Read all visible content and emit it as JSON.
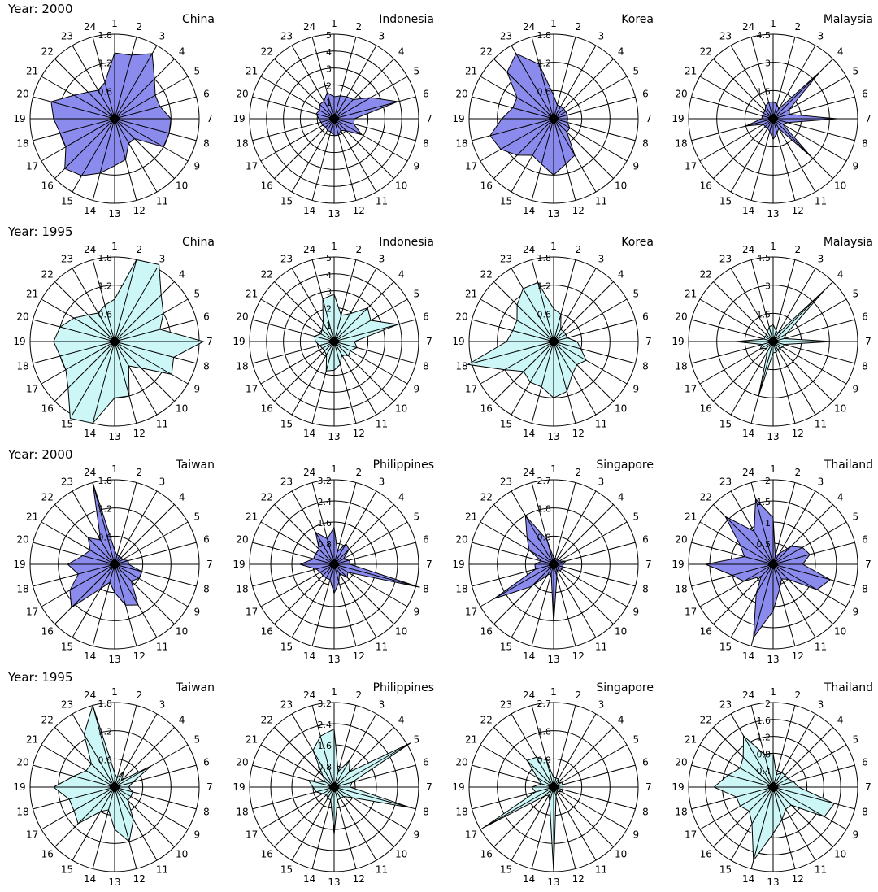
{
  "colors": {
    "row_2000": "#8b8bee",
    "row_1995": "#cdf6f6",
    "outline": "#000000",
    "center": "#000000"
  },
  "chart_data": [
    {
      "type": "radar",
      "year_label": "Year: 2000",
      "title": "China",
      "fill": "#8b8bee",
      "max": 1.8,
      "rings": [
        0.6,
        1.2,
        1.8
      ],
      "ring_labels": [
        "0.6",
        "1.2",
        "1.8"
      ],
      "categories": [
        "1",
        "2",
        "3",
        "4",
        "5",
        "6",
        "7",
        "8",
        "9",
        "10",
        "11",
        "12",
        "13",
        "14",
        "15",
        "16",
        "17",
        "18",
        "19",
        "20",
        "21",
        "22",
        "23",
        "24"
      ],
      "values": [
        1.4,
        1.4,
        1.6,
        1.2,
        1.0,
        1.0,
        1.2,
        1.2,
        1.2,
        0.6,
        0.6,
        0.9,
        1.0,
        1.2,
        1.4,
        1.5,
        1.2,
        1.2,
        1.3,
        1.4,
        1.0,
        0.8,
        0.7,
        0.8
      ]
    },
    {
      "type": "radar",
      "title": "Indonesia",
      "fill": "#8b8bee",
      "max": 5,
      "rings": [
        1,
        2,
        3,
        4,
        5
      ],
      "ring_labels": [
        "1",
        "2",
        "3",
        "4",
        "5"
      ],
      "categories": [
        "1",
        "2",
        "3",
        "4",
        "5",
        "6",
        "7",
        "8",
        "9",
        "10",
        "11",
        "12",
        "13",
        "14",
        "15",
        "16",
        "17",
        "18",
        "19",
        "20",
        "21",
        "22",
        "23",
        "24"
      ],
      "values": [
        1.3,
        1.4,
        1.5,
        1.6,
        2.5,
        3.9,
        1.2,
        1.2,
        1.9,
        1.0,
        0.8,
        1.0,
        1.0,
        0.8,
        0.8,
        0.7,
        0.8,
        0.8,
        0.9,
        1.1,
        1.0,
        1.2,
        1.2,
        1.6
      ]
    },
    {
      "type": "radar",
      "title": "Korea",
      "fill": "#8b8bee",
      "max": 1.8,
      "rings": [
        0.6,
        1.2,
        1.8
      ],
      "ring_labels": [
        "0.6",
        "1.2",
        "1.8"
      ],
      "categories": [
        "1",
        "2",
        "3",
        "4",
        "5",
        "6",
        "7",
        "8",
        "9",
        "10",
        "11",
        "12",
        "13",
        "14",
        "15",
        "16",
        "17",
        "18",
        "19",
        "20",
        "21",
        "22",
        "23",
        "24"
      ],
      "values": [
        0.5,
        0.3,
        0.3,
        0.3,
        0.3,
        0.3,
        0.3,
        0.3,
        0.4,
        0.4,
        0.9,
        1.0,
        1.2,
        1.0,
        0.9,
        1.1,
        1.3,
        1.4,
        1.1,
        0.9,
        0.9,
        1.4,
        1.6,
        1.2
      ]
    },
    {
      "type": "radar",
      "title": "Malaysia",
      "fill": "#8b8bee",
      "max": 4.5,
      "rings": [
        1.5,
        3,
        4.5
      ],
      "ring_labels": [
        "1.5",
        "3",
        "4.5"
      ],
      "categories": [
        "1",
        "2",
        "3",
        "4",
        "5",
        "6",
        "7",
        "8",
        "9",
        "10",
        "11",
        "12",
        "13",
        "14",
        "15",
        "16",
        "17",
        "18",
        "19",
        "20",
        "21",
        "22",
        "23",
        "24"
      ],
      "values": [
        0.9,
        0.8,
        0.6,
        3.5,
        1.0,
        0.9,
        3.4,
        0.8,
        0.6,
        2.9,
        0.6,
        0.8,
        1.1,
        0.7,
        0.6,
        0.6,
        0.6,
        1.5,
        0.6,
        0.6,
        0.6,
        0.6,
        0.8,
        0.9
      ]
    },
    {
      "type": "radar",
      "year_label": "Year: 1995",
      "title": "China",
      "fill": "#cdf6f6",
      "max": 1.8,
      "rings": [
        0.6,
        1.2,
        1.8
      ],
      "ring_labels": [
        "0.6",
        "1.2",
        "1.8"
      ],
      "categories": [
        "1",
        "2",
        "3",
        "4",
        "5",
        "6",
        "7",
        "8",
        "9",
        "10",
        "11",
        "12",
        "13",
        "14",
        "15",
        "16",
        "17",
        "18",
        "19",
        "20",
        "21",
        "22",
        "23",
        "24"
      ],
      "values": [
        0.9,
        1.8,
        1.9,
        1.4,
        1.2,
        1.0,
        1.9,
        1.3,
        1.4,
        0.8,
        0.6,
        1.2,
        1.2,
        1.8,
        1.9,
        1.4,
        1.2,
        1.2,
        1.3,
        1.2,
        1.0,
        0.8,
        0.7,
        0.8
      ]
    },
    {
      "type": "radar",
      "title": "Indonesia",
      "fill": "#cdf6f6",
      "max": 5,
      "rings": [
        1,
        2,
        3,
        4,
        5
      ],
      "ring_labels": [
        "1",
        "2",
        "3",
        "4",
        "5"
      ],
      "categories": [
        "1",
        "2",
        "3",
        "4",
        "5",
        "6",
        "7",
        "8",
        "9",
        "10",
        "11",
        "12",
        "13",
        "14",
        "15",
        "16",
        "17",
        "18",
        "19",
        "20",
        "21",
        "22",
        "23",
        "24"
      ],
      "values": [
        2.8,
        1.6,
        1.9,
        2.8,
        2.5,
        3.9,
        1.2,
        1.4,
        1.1,
        1.2,
        0.9,
        1.4,
        1.7,
        1.8,
        0.9,
        0.8,
        0.8,
        0.9,
        1.1,
        1.2,
        0.9,
        1.0,
        1.3,
        2.6
      ]
    },
    {
      "type": "radar",
      "title": "Korea",
      "fill": "#cdf6f6",
      "max": 1.8,
      "rings": [
        0.6,
        1.2,
        1.8
      ],
      "ring_labels": [
        "0.6",
        "1.2",
        "1.8"
      ],
      "categories": [
        "1",
        "2",
        "3",
        "4",
        "5",
        "6",
        "7",
        "8",
        "9",
        "10",
        "11",
        "12",
        "13",
        "14",
        "15",
        "16",
        "17",
        "18",
        "19",
        "20",
        "21",
        "22",
        "23",
        "24"
      ],
      "values": [
        0.7,
        0.6,
        0.3,
        0.3,
        0.3,
        0.3,
        0.5,
        0.6,
        0.8,
        0.7,
        0.8,
        1.1,
        1.2,
        1.0,
        1.0,
        0.9,
        1.2,
        1.9,
        1.0,
        0.9,
        0.9,
        1.1,
        1.3,
        1.3
      ]
    },
    {
      "type": "radar",
      "title": "Malaysia",
      "fill": "#cdf6f6",
      "max": 4.5,
      "rings": [
        1.5,
        3,
        4.5
      ],
      "ring_labels": [
        "1.5",
        "3",
        "4.5"
      ],
      "categories": [
        "1",
        "2",
        "3",
        "4",
        "5",
        "6",
        "7",
        "8",
        "9",
        "10",
        "11",
        "12",
        "13",
        "14",
        "15",
        "16",
        "17",
        "18",
        "19",
        "20",
        "21",
        "22",
        "23",
        "24"
      ],
      "values": [
        0.9,
        0.6,
        0.5,
        3.9,
        0.8,
        0.6,
        3.1,
        0.6,
        0.6,
        0.5,
        0.5,
        0.6,
        0.6,
        3.0,
        0.6,
        0.5,
        0.8,
        0.6,
        2.0,
        0.5,
        0.5,
        0.5,
        0.6,
        0.8
      ]
    },
    {
      "type": "radar",
      "year_label": "Year: 2000",
      "title": "Taiwan",
      "fill": "#8b8bee",
      "max": 1.8,
      "rings": [
        0.6,
        1.2,
        1.8
      ],
      "ring_labels": [
        "0.6",
        "1.2",
        "1.8"
      ],
      "categories": [
        "1",
        "2",
        "3",
        "4",
        "5",
        "6",
        "7",
        "8",
        "9",
        "10",
        "11",
        "12",
        "13",
        "14",
        "15",
        "16",
        "17",
        "18",
        "19",
        "20",
        "21",
        "22",
        "23",
        "24"
      ],
      "values": [
        0.3,
        0.2,
        0.2,
        0.2,
        0.2,
        0.3,
        0.3,
        0.6,
        0.6,
        0.5,
        1.0,
        0.9,
        0.6,
        0.4,
        0.6,
        1.3,
        1.1,
        0.8,
        1.0,
        0.7,
        0.6,
        0.8,
        0.6,
        1.8
      ]
    },
    {
      "type": "radar",
      "title": "Philippines",
      "fill": "#8b8bee",
      "max": 3.2,
      "rings": [
        0.8,
        1.6,
        2.4,
        3.2
      ],
      "ring_labels": [
        "0.8",
        "1.6",
        "2.4",
        "3.2"
      ],
      "categories": [
        "1",
        "2",
        "3",
        "4",
        "5",
        "6",
        "7",
        "8",
        "9",
        "10",
        "11",
        "12",
        "13",
        "14",
        "15",
        "16",
        "17",
        "18",
        "19",
        "20",
        "21",
        "22",
        "23",
        "24"
      ],
      "values": [
        1.4,
        0.5,
        0.9,
        0.8,
        0.4,
        0.6,
        0.6,
        3.4,
        0.6,
        0.7,
        0.4,
        0.7,
        1.1,
        0.6,
        0.6,
        0.6,
        0.6,
        0.7,
        1.3,
        0.8,
        0.8,
        0.8,
        1.4,
        1.0
      ]
    },
    {
      "type": "radar",
      "title": "Singapore",
      "fill": "#8b8bee",
      "max": 2.7,
      "rings": [
        0.9,
        1.8,
        2.7
      ],
      "ring_labels": [
        "0.9",
        "1.8",
        "2.7"
      ],
      "categories": [
        "1",
        "2",
        "3",
        "4",
        "5",
        "6",
        "7",
        "8",
        "9",
        "10",
        "11",
        "12",
        "13",
        "14",
        "15",
        "16",
        "17",
        "18",
        "19",
        "20",
        "21",
        "22",
        "23",
        "24"
      ],
      "values": [
        0.2,
        0.2,
        0.2,
        0.2,
        0.2,
        0.4,
        0.3,
        0.3,
        0.3,
        0.3,
        0.2,
        0.4,
        1.9,
        0.3,
        0.4,
        1.0,
        2.2,
        0.6,
        0.6,
        0.4,
        0.9,
        1.2,
        1.8,
        0.8
      ]
    },
    {
      "type": "radar",
      "title": "Thailand",
      "fill": "#8b8bee",
      "max": 2,
      "rings": [
        0.5,
        1,
        1.5,
        2
      ],
      "ring_labels": [
        "0.5",
        "1",
        "1.5",
        "2"
      ],
      "categories": [
        "1",
        "2",
        "3",
        "4",
        "5",
        "6",
        "7",
        "8",
        "9",
        "10",
        "11",
        "12",
        "13",
        "14",
        "15",
        "16",
        "17",
        "18",
        "19",
        "20",
        "21",
        "22",
        "23",
        "24"
      ],
      "values": [
        1.1,
        0.2,
        0.3,
        0.6,
        0.8,
        0.9,
        0.7,
        1.4,
        1.2,
        0.5,
        0.4,
        0.6,
        1.1,
        1.8,
        0.8,
        0.4,
        0.8,
        1.0,
        1.6,
        0.7,
        0.9,
        1.6,
        0.9,
        1.6
      ]
    },
    {
      "type": "radar",
      "year_label": "Year: 1995",
      "title": "Taiwan",
      "fill": "#cdf6f6",
      "max": 1.8,
      "rings": [
        0.6,
        1.2,
        1.8
      ],
      "ring_labels": [
        "0.6",
        "1.2",
        "1.8"
      ],
      "categories": [
        "1",
        "2",
        "3",
        "4",
        "5",
        "6",
        "7",
        "8",
        "9",
        "10",
        "11",
        "12",
        "13",
        "14",
        "15",
        "16",
        "17",
        "18",
        "19",
        "20",
        "21",
        "22",
        "23",
        "24"
      ],
      "values": [
        0.3,
        0.2,
        0.4,
        0.2,
        0.9,
        0.4,
        0.3,
        0.4,
        0.4,
        0.4,
        0.8,
        1.2,
        0.9,
        0.5,
        0.6,
        1.1,
        1.0,
        1.0,
        1.3,
        0.9,
        0.7,
        0.7,
        1.3,
        1.8
      ]
    },
    {
      "type": "radar",
      "title": "Philippines",
      "fill": "#cdf6f6",
      "max": 3.2,
      "rings": [
        0.8,
        1.6,
        2.4,
        3.2
      ],
      "ring_labels": [
        "0.8",
        "1.6",
        "2.4",
        "3.2"
      ],
      "categories": [
        "1",
        "2",
        "3",
        "4",
        "5",
        "6",
        "7",
        "8",
        "9",
        "10",
        "11",
        "12",
        "13",
        "14",
        "15",
        "16",
        "17",
        "18",
        "19",
        "20",
        "21",
        "22",
        "23",
        "24"
      ],
      "values": [
        2.2,
        0.6,
        1.2,
        0.8,
        3.6,
        0.7,
        0.6,
        3.0,
        0.8,
        0.5,
        0.5,
        0.5,
        1.8,
        0.5,
        0.5,
        0.4,
        0.5,
        0.7,
        0.8,
        1.0,
        0.4,
        0.6,
        1.6,
        2.0
      ]
    },
    {
      "type": "radar",
      "title": "Singapore",
      "fill": "#cdf6f6",
      "max": 2.7,
      "rings": [
        0.9,
        1.8,
        2.7
      ],
      "ring_labels": [
        "0.9",
        "1.8",
        "2.7"
      ],
      "categories": [
        "1",
        "2",
        "3",
        "4",
        "5",
        "6",
        "7",
        "8",
        "9",
        "10",
        "11",
        "12",
        "13",
        "14",
        "15",
        "16",
        "17",
        "18",
        "19",
        "20",
        "21",
        "22",
        "23",
        "24"
      ],
      "values": [
        0.3,
        0.3,
        0.3,
        0.2,
        0.3,
        0.3,
        0.3,
        0.3,
        0.3,
        0.2,
        0.2,
        0.3,
        2.7,
        0.5,
        0.3,
        0.4,
        2.6,
        0.6,
        0.7,
        0.4,
        0.6,
        1.2,
        1.1,
        0.9
      ]
    },
    {
      "type": "radar",
      "title": "Thailand",
      "fill": "#cdf6f6",
      "max": 2,
      "rings": [
        0.4,
        0.8,
        1.2,
        1.6,
        2
      ],
      "ring_labels": [
        "0.4",
        "0.8",
        "1.2",
        "1.6",
        "2"
      ],
      "categories": [
        "1",
        "2",
        "3",
        "4",
        "5",
        "6",
        "7",
        "8",
        "9",
        "10",
        "11",
        "12",
        "13",
        "14",
        "15",
        "16",
        "17",
        "18",
        "19",
        "20",
        "21",
        "22",
        "23",
        "24"
      ],
      "values": [
        0.8,
        0.3,
        0.4,
        0.4,
        0.4,
        0.5,
        0.6,
        1.5,
        1.4,
        0.6,
        0.6,
        0.8,
        1.1,
        1.8,
        1.0,
        0.8,
        0.9,
        0.9,
        1.4,
        1.1,
        0.9,
        1.0,
        1.4,
        0.8
      ]
    }
  ]
}
